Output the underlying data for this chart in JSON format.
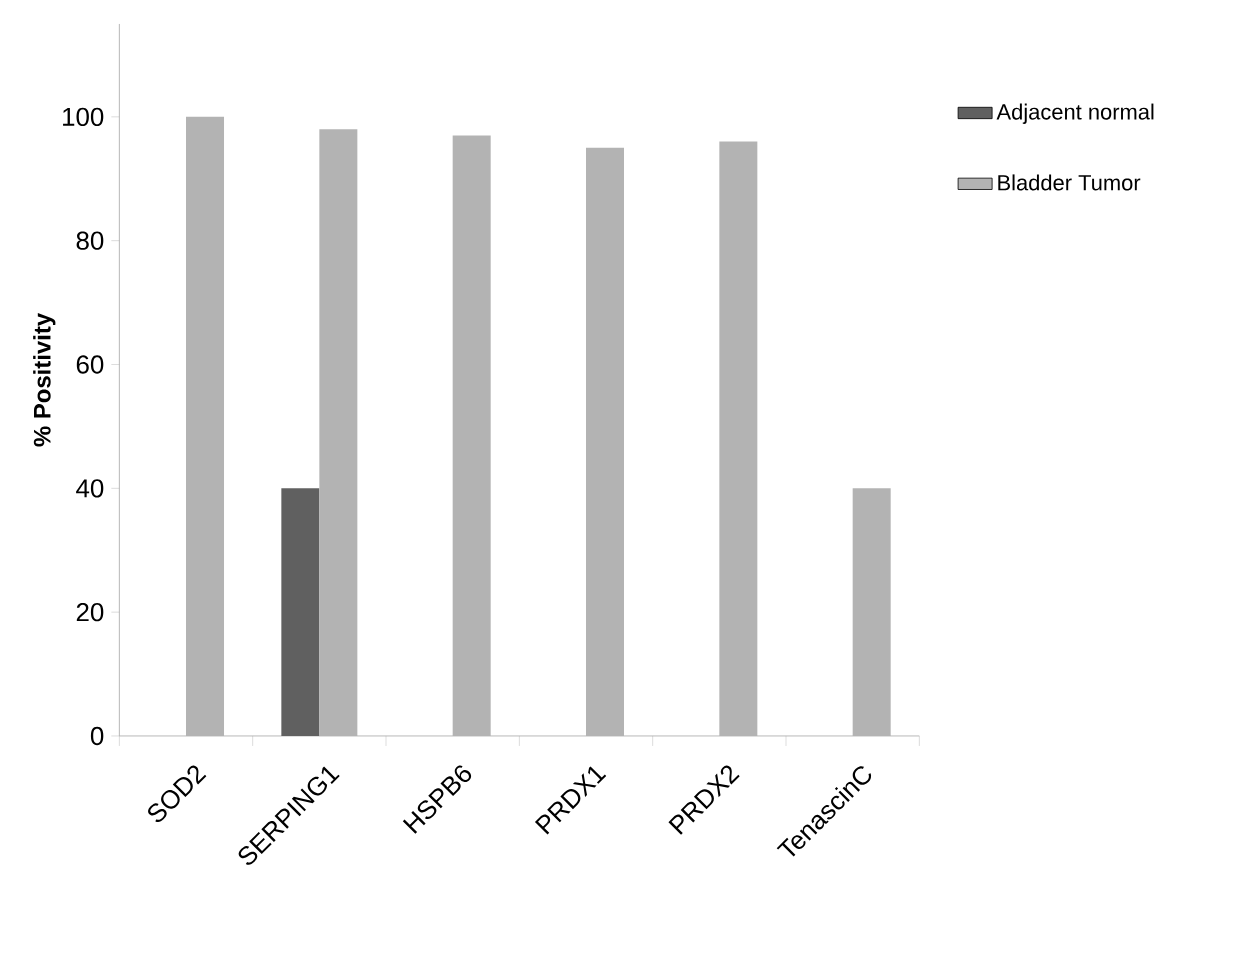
{
  "chart_data": {
    "type": "bar",
    "ylabel": "% Positivity",
    "categories": [
      "SOD2",
      "SERPING1",
      "HSPB6",
      "PRDX1",
      "PRDX2",
      "TenascinC"
    ],
    "series": [
      {
        "name": "Adjacent normal",
        "color": "#606060",
        "values": [
          null,
          40,
          null,
          null,
          null,
          null
        ]
      },
      {
        "name": "Bladder Tumor",
        "color": "#b3b3b3",
        "values": [
          100,
          98,
          97,
          95,
          96,
          40
        ]
      }
    ],
    "ylim": [
      0,
      115
    ],
    "yticks": [
      0,
      20,
      40,
      60,
      80,
      100
    ],
    "legend": "right"
  }
}
